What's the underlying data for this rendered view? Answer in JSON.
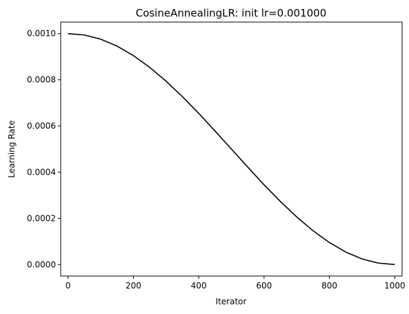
{
  "chart_data": {
    "type": "line",
    "title": "CosineAnnealingLR: init lr=0.001000",
    "xlabel": "Iterator",
    "ylabel": "Learning Rate",
    "xlim": [
      -22.5,
      1022.5
    ],
    "ylim": [
      -5e-05,
      0.00105
    ],
    "xticks": [
      0,
      200,
      400,
      600,
      800,
      1000
    ],
    "xtick_labels": [
      "0",
      "200",
      "400",
      "600",
      "800",
      "1000"
    ],
    "yticks": [
      0.0,
      0.0002,
      0.0004,
      0.0006,
      0.0008,
      0.001
    ],
    "ytick_labels": [
      "0.0000",
      "0.0002",
      "0.0004",
      "0.0006",
      "0.0008",
      "0.0010"
    ],
    "grid": false,
    "line_color": "#000000",
    "series": [
      {
        "x": [
          0,
          50,
          100,
          150,
          200,
          250,
          300,
          350,
          400,
          450,
          500,
          550,
          600,
          650,
          700,
          750,
          800,
          850,
          900,
          950,
          1000
        ],
        "values": [
          0.001,
          0.000994,
          0.000976,
          0.000946,
          0.000905,
          0.000854,
          0.000794,
          0.000727,
          0.000655,
          0.000578,
          0.0005,
          0.000422,
          0.000345,
          0.000273,
          0.000206,
          0.000146,
          9.5e-05,
          5.4e-05,
          2.4e-05,
          6e-06,
          0.0
        ]
      }
    ]
  }
}
